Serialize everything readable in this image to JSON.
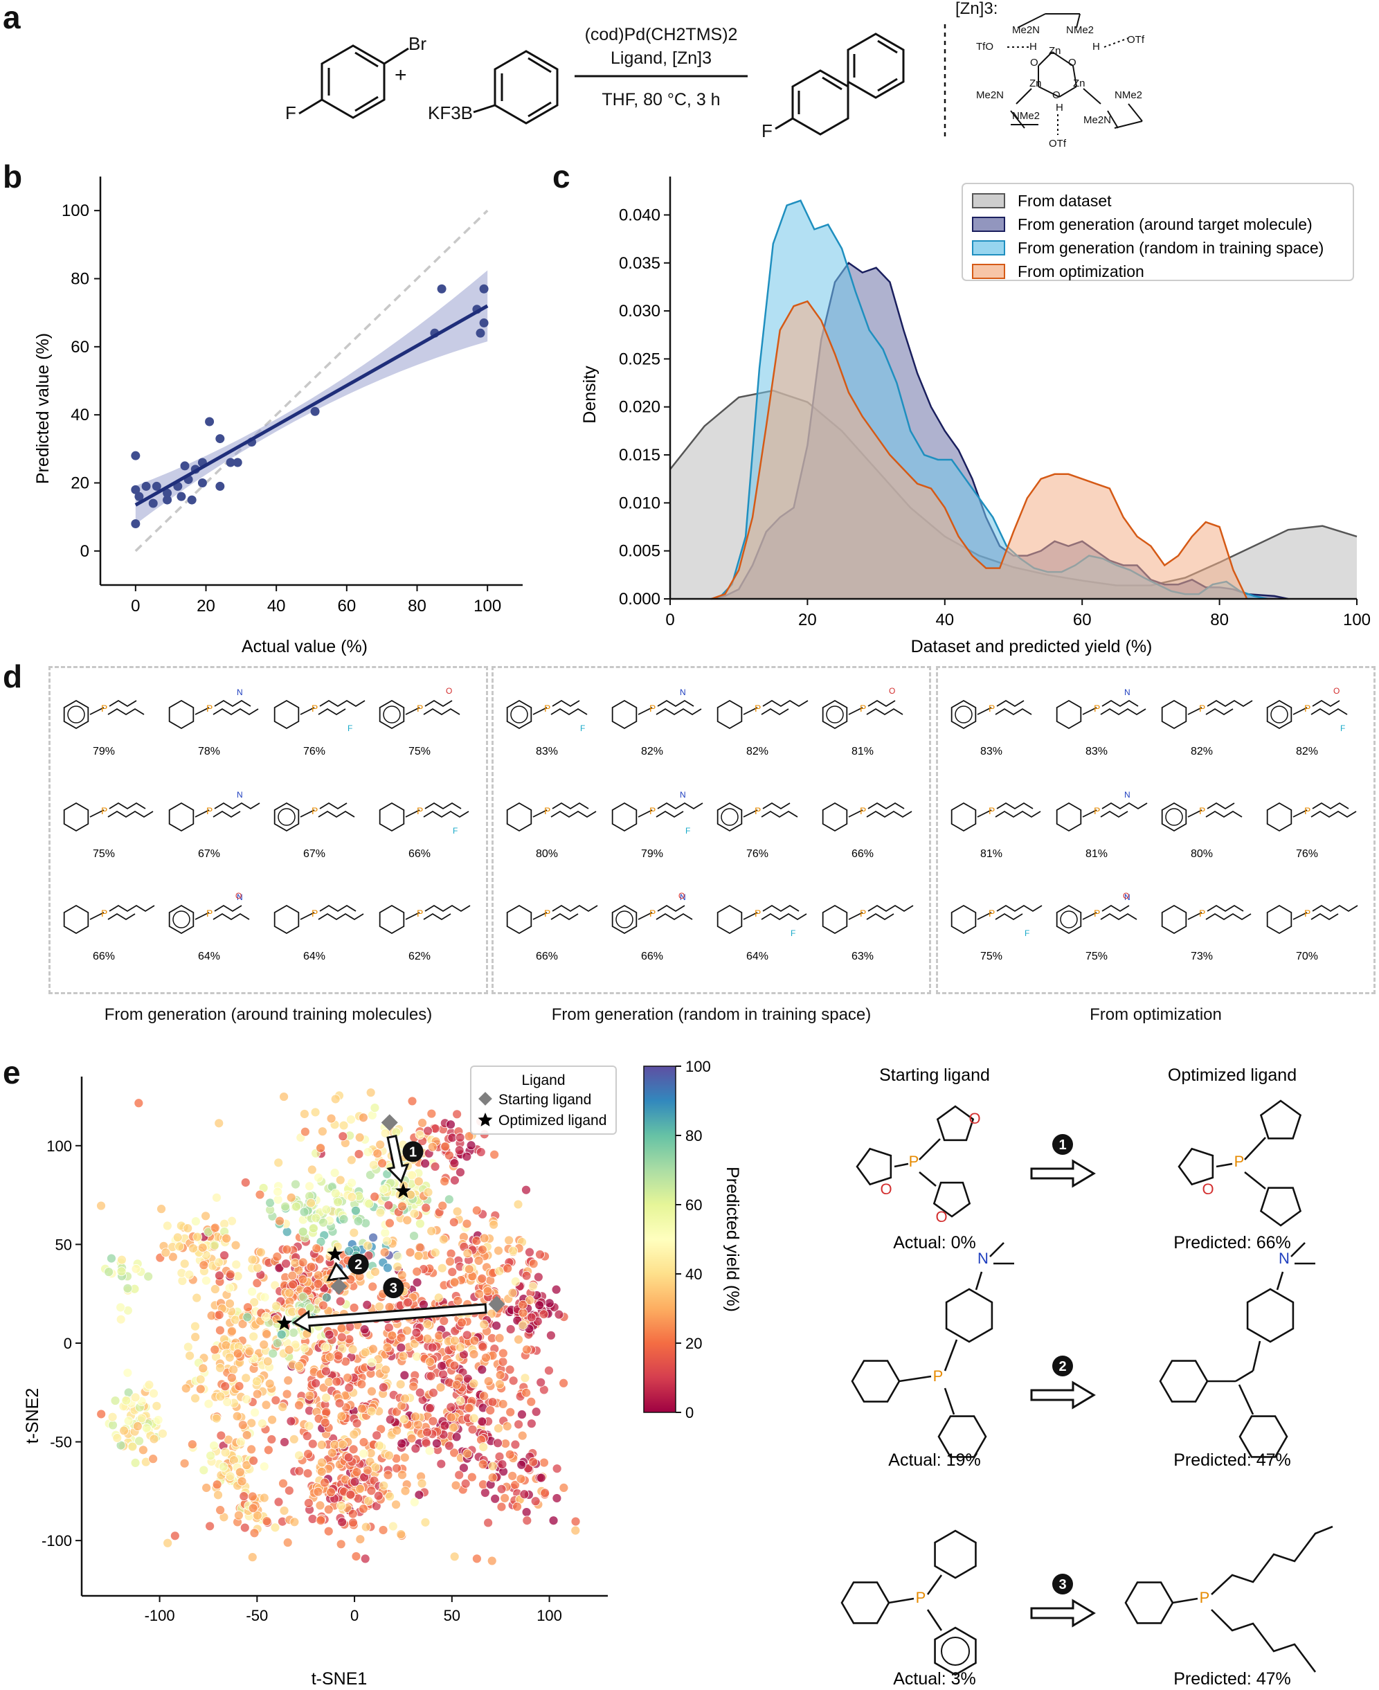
{
  "panels": {
    "a": "a",
    "b": "b",
    "c": "c",
    "d": "d",
    "e": "e"
  },
  "reaction": {
    "conditions_line1": "(cod)Pd(CH2TMS)2",
    "conditions_line2": "Ligand, [Zn]3",
    "conditions_line3": "THF, 80 °C, 3 h",
    "plus": "+",
    "reactant1_labels": [
      "F",
      "Br"
    ],
    "reactant2_label": "KF3B",
    "product_label": "F",
    "zn_label": "[Zn]3:",
    "zn_atoms": [
      "Me2N",
      "NMe2",
      "TfO",
      "H",
      "O",
      "Zn",
      "O",
      "H",
      "OTf",
      "Zn",
      "Zn",
      "Me2N",
      "NMe2",
      "O",
      "H",
      "NMe2",
      "Me2N",
      "OTf"
    ]
  },
  "panel_b": {
    "xlabel": "Actual value (%)",
    "ylabel": "Predicted value (%)",
    "xticks": [
      0,
      20,
      40,
      60,
      80,
      100
    ],
    "yticks": [
      0,
      20,
      40,
      60,
      80,
      100
    ],
    "xlim": [
      -10,
      110
    ],
    "ylim": [
      -10,
      110
    ],
    "points": [
      [
        0,
        28
      ],
      [
        0,
        8
      ],
      [
        0,
        18
      ],
      [
        1,
        16
      ],
      [
        3,
        19
      ],
      [
        5,
        14
      ],
      [
        6,
        19
      ],
      [
        9,
        15
      ],
      [
        9,
        17
      ],
      [
        12,
        19
      ],
      [
        13,
        16
      ],
      [
        14,
        25
      ],
      [
        15,
        21
      ],
      [
        16,
        15
      ],
      [
        17,
        24
      ],
      [
        19,
        20
      ],
      [
        19,
        26
      ],
      [
        21,
        38
      ],
      [
        24,
        19
      ],
      [
        24,
        33
      ],
      [
        27,
        26
      ],
      [
        29,
        26
      ],
      [
        33,
        32
      ],
      [
        51,
        41
      ],
      [
        85,
        64
      ],
      [
        87,
        77
      ],
      [
        97,
        71
      ],
      [
        98,
        64
      ],
      [
        99,
        67
      ],
      [
        99,
        77
      ]
    ],
    "fit": {
      "x": [
        0,
        100
      ],
      "y": [
        13.5,
        72
      ]
    },
    "point_color": "#3f4d8f",
    "line_color": "#1f2e7a"
  },
  "chart_data": {
    "type": "area",
    "title": "",
    "xlabel": "Dataset and predicted yield (%)",
    "ylabel": "Density",
    "xlim": [
      0,
      100
    ],
    "ylim": [
      0,
      0.044
    ],
    "xticks": [
      0,
      20,
      40,
      60,
      80,
      100
    ],
    "yticks": [
      "0.000",
      "0.005",
      "0.010",
      "0.015",
      "0.020",
      "0.025",
      "0.030",
      "0.035",
      "0.040"
    ],
    "legend_position": "top-right",
    "series": [
      {
        "name": "From dataset",
        "fill": "#bdbdbd",
        "stroke": "#555555",
        "x": [
          0,
          5,
          10,
          15,
          20,
          25,
          30,
          35,
          40,
          45,
          50,
          55,
          60,
          65,
          70,
          75,
          80,
          85,
          90,
          95,
          100
        ],
        "y": [
          0.0135,
          0.018,
          0.021,
          0.0217,
          0.0205,
          0.0175,
          0.0135,
          0.0095,
          0.0065,
          0.0045,
          0.0033,
          0.0025,
          0.0019,
          0.0014,
          0.0014,
          0.0022,
          0.0038,
          0.0055,
          0.0072,
          0.0076,
          0.0065
        ]
      },
      {
        "name": "From generation (around target molecule)",
        "fill": "#6e73a8",
        "stroke": "#1a1f5e",
        "x": [
          6,
          8,
          10,
          12,
          14,
          16,
          18,
          20,
          22,
          24,
          26,
          28,
          30,
          32,
          34,
          36,
          38,
          40,
          42,
          44,
          46,
          48,
          50,
          52,
          54,
          56,
          58,
          60,
          62,
          64,
          66,
          68,
          70,
          72,
          74,
          76,
          78,
          80,
          82,
          84,
          86,
          88,
          90
        ],
        "y": [
          0,
          0.0003,
          0.001,
          0.0035,
          0.007,
          0.0085,
          0.0095,
          0.016,
          0.027,
          0.033,
          0.035,
          0.034,
          0.0345,
          0.033,
          0.028,
          0.0235,
          0.02,
          0.0175,
          0.0155,
          0.0125,
          0.0085,
          0.0055,
          0.0045,
          0.0045,
          0.005,
          0.006,
          0.0055,
          0.006,
          0.005,
          0.004,
          0.0035,
          0.0035,
          0.002,
          0.0015,
          0.0015,
          0.002,
          0.0012,
          0.0012,
          0.001,
          0.0005,
          0.0004,
          0.0003,
          0
        ]
      },
      {
        "name": "From generation (random in training space)",
        "fill": "#74c7e9",
        "stroke": "#1f8fbf",
        "x": [
          7,
          9,
          11,
          13,
          15,
          17,
          19,
          21,
          23,
          25,
          27,
          29,
          31,
          33,
          35,
          37,
          39,
          41,
          43,
          45,
          47,
          49,
          51,
          53,
          55,
          57,
          59,
          61,
          63,
          65,
          67,
          69,
          71,
          73,
          75,
          77,
          79,
          81,
          83,
          85,
          87
        ],
        "y": [
          0,
          0.0015,
          0.0065,
          0.024,
          0.037,
          0.041,
          0.0415,
          0.0385,
          0.039,
          0.0365,
          0.032,
          0.028,
          0.026,
          0.0225,
          0.0175,
          0.015,
          0.0145,
          0.0145,
          0.0125,
          0.0105,
          0.0085,
          0.0055,
          0.0042,
          0.0032,
          0.0028,
          0.0028,
          0.0035,
          0.0045,
          0.0042,
          0.0035,
          0.003,
          0.0022,
          0.0015,
          0.0008,
          0.0005,
          0.0005,
          0.0015,
          0.0018,
          0.0008,
          0.0003,
          0
        ]
      },
      {
        "name": "From optimization",
        "fill": "#f4b18a",
        "stroke": "#d55a16",
        "x": [
          6,
          8,
          10,
          12,
          14,
          16,
          18,
          20,
          22,
          24,
          26,
          28,
          30,
          32,
          34,
          36,
          38,
          40,
          42,
          44,
          46,
          48,
          50,
          52,
          54,
          56,
          58,
          60,
          62,
          64,
          66,
          68,
          70,
          72,
          74,
          76,
          78,
          80,
          82,
          84
        ],
        "y": [
          0,
          0.0005,
          0.003,
          0.0085,
          0.018,
          0.028,
          0.0305,
          0.031,
          0.029,
          0.0255,
          0.0215,
          0.019,
          0.017,
          0.015,
          0.0135,
          0.012,
          0.0115,
          0.0095,
          0.0065,
          0.0045,
          0.0032,
          0.0032,
          0.007,
          0.0105,
          0.0125,
          0.013,
          0.013,
          0.0125,
          0.012,
          0.0115,
          0.0085,
          0.0065,
          0.0055,
          0.0035,
          0.0045,
          0.0065,
          0.008,
          0.0075,
          0.003,
          0
        ]
      }
    ]
  },
  "panel_d": {
    "groups": [
      {
        "caption": "From generation (around training molecules)",
        "yields": [
          "79%",
          "78%",
          "76%",
          "75%",
          "75%",
          "67%",
          "67%",
          "66%",
          "66%",
          "64%",
          "64%",
          "62%"
        ]
      },
      {
        "caption": "From generation (random in training space)",
        "yields": [
          "83%",
          "82%",
          "82%",
          "81%",
          "80%",
          "79%",
          "76%",
          "66%",
          "66%",
          "66%",
          "64%",
          "63%"
        ]
      },
      {
        "caption": "From optimization",
        "yields": [
          "83%",
          "83%",
          "82%",
          "82%",
          "81%",
          "81%",
          "80%",
          "76%",
          "75%",
          "75%",
          "73%",
          "70%"
        ]
      }
    ]
  },
  "panel_e": {
    "xlabel": "t-SNE1",
    "ylabel": "t-SNE2",
    "xticks": [
      "-100",
      "-50",
      "0",
      "50",
      "100"
    ],
    "yticks": [
      "100",
      "50",
      "0",
      "-50",
      "-100"
    ],
    "xlim": [
      -140,
      130
    ],
    "ylim": [
      -128,
      135
    ],
    "colorbar": {
      "label": "Predicted yield (%)",
      "ticks": [
        "100",
        "80",
        "60",
        "40",
        "20",
        "0"
      ]
    },
    "legend": {
      "title": "Ligand",
      "starting": "Starting ligand",
      "optimized": "Optimized ligand"
    },
    "clusters": [
      {
        "cx": -118,
        "cy": 33,
        "sx": 6,
        "sy": 8,
        "n": 20,
        "yield": 60
      },
      {
        "cx": -112,
        "cy": -40,
        "sx": 7,
        "sy": 10,
        "n": 60,
        "yield": 48
      },
      {
        "cx": -78,
        "cy": 50,
        "sx": 10,
        "sy": 8,
        "n": 60,
        "yield": 38
      },
      {
        "cx": -60,
        "cy": -5,
        "sx": 12,
        "sy": 22,
        "n": 160,
        "yield": 35
      },
      {
        "cx": -63,
        "cy": -60,
        "sx": 7,
        "sy": 7,
        "n": 50,
        "yield": 42
      },
      {
        "cx": -55,
        "cy": -85,
        "sx": 6,
        "sy": 5,
        "n": 30,
        "yield": 30
      },
      {
        "cx": -25,
        "cy": 30,
        "sx": 12,
        "sy": 10,
        "n": 140,
        "yield": 18
      },
      {
        "cx": -20,
        "cy": 68,
        "sx": 12,
        "sy": 8,
        "n": 80,
        "yield": 62
      },
      {
        "cx": -28,
        "cy": 10,
        "sx": 9,
        "sy": 8,
        "n": 60,
        "yield": 60
      },
      {
        "cx": -10,
        "cy": -25,
        "sx": 15,
        "sy": 20,
        "n": 160,
        "yield": 22
      },
      {
        "cx": -2,
        "cy": -72,
        "sx": 14,
        "sy": 14,
        "n": 160,
        "yield": 20
      },
      {
        "cx": 20,
        "cy": 75,
        "sx": 10,
        "sy": 8,
        "n": 70,
        "yield": 55
      },
      {
        "cx": 5,
        "cy": 45,
        "sx": 8,
        "sy": 5,
        "n": 18,
        "yield": 88
      },
      {
        "cx": 10,
        "cy": 100,
        "sx": 20,
        "sy": 12,
        "n": 60,
        "yield": 40
      },
      {
        "cx": 30,
        "cy": 10,
        "sx": 15,
        "sy": 15,
        "n": 110,
        "yield": 18
      },
      {
        "cx": 45,
        "cy": -35,
        "sx": 15,
        "sy": 15,
        "n": 120,
        "yield": 12
      },
      {
        "cx": 70,
        "cy": -5,
        "sx": 15,
        "sy": 25,
        "n": 150,
        "yield": 15
      },
      {
        "cx": 80,
        "cy": -70,
        "sx": 14,
        "sy": 12,
        "n": 70,
        "yield": 12
      },
      {
        "cx": 50,
        "cy": 100,
        "sx": 10,
        "sy": 8,
        "n": 50,
        "yield": 12
      },
      {
        "cx": 92,
        "cy": 18,
        "sx": 6,
        "sy": 6,
        "n": 40,
        "yield": 8
      },
      {
        "cx": 55,
        "cy": 45,
        "sx": 20,
        "sy": 15,
        "n": 100,
        "yield": 25
      },
      {
        "cx": 0,
        "cy": 0,
        "sx": 55,
        "sy": 55,
        "n": 200,
        "yield": 30
      }
    ],
    "starting_points": [
      [
        18,
        110
      ],
      [
        -8,
        27
      ],
      [
        73,
        18
      ]
    ],
    "optimized_points": [
      [
        25,
        77
      ],
      [
        -10,
        45
      ],
      [
        -36,
        10
      ]
    ],
    "arrow_labels": [
      "1",
      "2",
      "3"
    ],
    "header_start": "Starting ligand",
    "header_opt": "Optimized ligand",
    "pairs": [
      {
        "actual": "Actual: 0%",
        "predicted": "Predicted: 66%"
      },
      {
        "actual": "Actual: 19%",
        "predicted": "Predicted: 47%"
      },
      {
        "actual": "Actual: 3%",
        "predicted": "Predicted: 47%"
      }
    ],
    "atom_labels": {
      "O": "O",
      "P": "P",
      "N": "N"
    }
  },
  "colors": {
    "phosphorus": "#e68a00",
    "oxygen": "#d32f2f",
    "nitrogen": "#1f3fbf",
    "fluorine": "#19a9c9"
  }
}
